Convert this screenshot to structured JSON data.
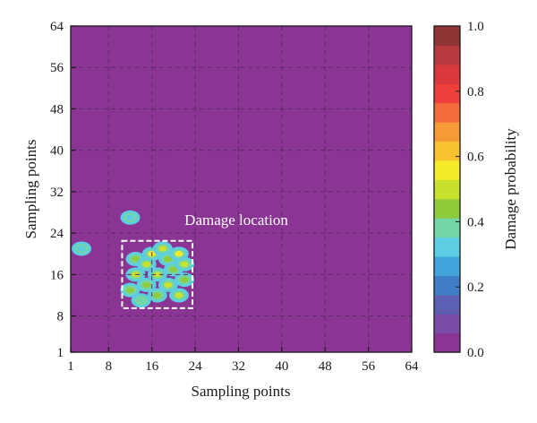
{
  "chart_data": {
    "type": "heatmap",
    "xlabel": "Sampling points",
    "ylabel": "Sampling points",
    "x_ticks": [
      "1",
      "8",
      "16",
      "24",
      "32",
      "40",
      "48",
      "56",
      "64"
    ],
    "y_ticks": [
      "1",
      "8",
      "16",
      "24",
      "32",
      "40",
      "48",
      "56",
      "64"
    ],
    "xlim": [
      1,
      64
    ],
    "ylim": [
      1,
      64
    ],
    "grid": true,
    "background_value": 0.0,
    "colorbar": {
      "label": "Damage probability",
      "range": [
        0.0,
        1.0
      ],
      "tick_labels": [
        "0.0",
        "0.2",
        "0.4",
        "0.6",
        "0.8",
        "1.0"
      ],
      "colors": [
        "#8a3493",
        "#7b4ba8",
        "#5d5fb3",
        "#3f7dc6",
        "#41a5dc",
        "#5ccde3",
        "#74d5a6",
        "#8fcc3c",
        "#c8e12c",
        "#f4eb2a",
        "#f8c230",
        "#f59a36",
        "#f36c3a",
        "#ee3f3b",
        "#d9383f",
        "#b63a3e",
        "#8f3534"
      ]
    },
    "annotation": {
      "text": "Damage location",
      "box_x": [
        10.5,
        23.5
      ],
      "box_y": [
        9.5,
        22.5
      ]
    },
    "hotspots": [
      {
        "x": 3,
        "y": 21,
        "value": 0.35
      },
      {
        "x": 12,
        "y": 27,
        "value": 0.3
      },
      {
        "x": 12,
        "y": 13,
        "value": 0.45
      },
      {
        "x": 13,
        "y": 16,
        "value": 0.5
      },
      {
        "x": 13,
        "y": 19,
        "value": 0.45
      },
      {
        "x": 14,
        "y": 11,
        "value": 0.4
      },
      {
        "x": 15,
        "y": 18,
        "value": 0.5
      },
      {
        "x": 15,
        "y": 14,
        "value": 0.45
      },
      {
        "x": 16,
        "y": 20,
        "value": 0.55
      },
      {
        "x": 17,
        "y": 16,
        "value": 0.5
      },
      {
        "x": 17,
        "y": 12,
        "value": 0.45
      },
      {
        "x": 18,
        "y": 21,
        "value": 0.5
      },
      {
        "x": 19,
        "y": 19,
        "value": 0.45
      },
      {
        "x": 19,
        "y": 14,
        "value": 0.5
      },
      {
        "x": 20,
        "y": 17,
        "value": 0.45
      },
      {
        "x": 21,
        "y": 20,
        "value": 0.55
      },
      {
        "x": 21,
        "y": 12,
        "value": 0.5
      },
      {
        "x": 22,
        "y": 15,
        "value": 0.45
      },
      {
        "x": 22,
        "y": 18,
        "value": 0.5
      }
    ]
  }
}
